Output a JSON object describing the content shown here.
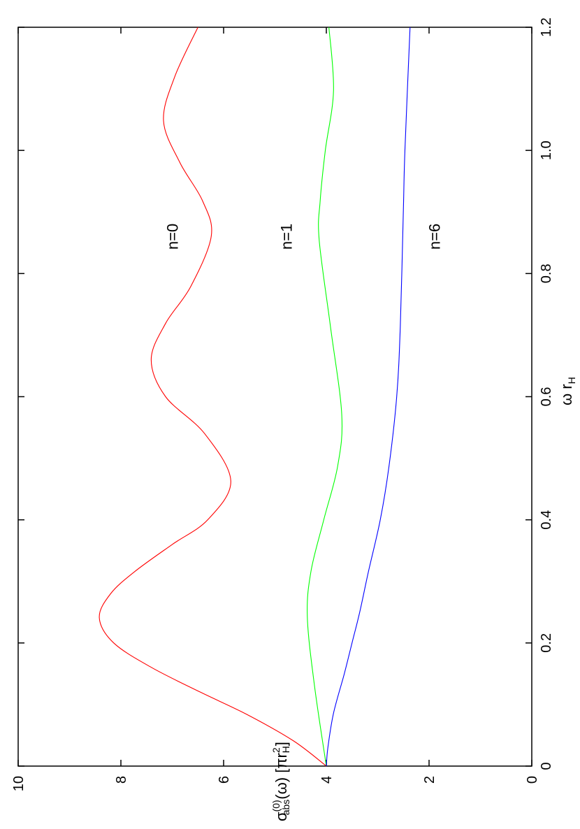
{
  "chart_data": {
    "type": "line",
    "orientation": "rotated 90° counter-clockwise",
    "title": "",
    "xlabel": "ω r",
    "xlabel_sub": "H",
    "ylabel_main": "σ",
    "ylabel_sup": "(0)",
    "ylabel_sub": "abs",
    "ylabel_rest": "(ω) [πr",
    "ylabel_sup2": "2",
    "ylabel_sub2": "H",
    "ylabel_end": "]",
    "xlim": [
      0,
      1.2
    ],
    "ylim": [
      0,
      10
    ],
    "xticks": [
      "0",
      "0.2",
      "0.4",
      "0.6",
      "0.8",
      "1.0",
      "1.2"
    ],
    "yticks": [
      "0",
      "2",
      "4",
      "6",
      "8",
      "10"
    ],
    "grid": false,
    "series": [
      {
        "name": "n=0",
        "color": "#ff0000",
        "x": [
          0,
          0.041,
          0.084,
          0.12,
          0.16,
          0.2,
          0.241,
          0.28,
          0.316,
          0.36,
          0.4,
          0.463,
          0.54,
          0.6,
          0.66,
          0.719,
          0.779,
          0.861,
          0.918,
          0.98,
          1.048,
          1.12,
          1.2
        ],
        "y": [
          4.0,
          4.64,
          5.55,
          6.45,
          7.4,
          8.14,
          8.42,
          8.2,
          7.73,
          7.0,
          6.31,
          5.86,
          6.37,
          7.13,
          7.41,
          7.13,
          6.64,
          6.24,
          6.41,
          6.85,
          7.17,
          6.95,
          6.5
        ]
      },
      {
        "name": "n=1",
        "color": "#00ff00",
        "x": [
          0,
          0.13,
          0.242,
          0.316,
          0.4,
          0.487,
          0.571,
          0.714,
          0.855,
          0.918,
          1.0,
          1.097,
          1.2
        ],
        "y": [
          4.0,
          4.23,
          4.37,
          4.3,
          4.05,
          3.78,
          3.7,
          3.92,
          4.14,
          4.12,
          4.02,
          3.86,
          3.95
        ]
      },
      {
        "name": "n=6",
        "color": "#0000ff",
        "x": [
          0,
          0.03,
          0.086,
          0.15,
          0.2,
          0.25,
          0.316,
          0.4,
          0.487,
          0.6,
          0.714,
          0.904,
          1.0,
          1.2
        ],
        "y": [
          4.0,
          3.97,
          3.86,
          3.65,
          3.5,
          3.35,
          3.18,
          2.95,
          2.78,
          2.63,
          2.56,
          2.5,
          2.47,
          2.37
        ]
      }
    ],
    "annotations": [
      {
        "text": "n=0",
        "x": 0.86,
        "y": 7.0
      },
      {
        "text": "n=1",
        "x": 0.86,
        "y": 4.78
      },
      {
        "text": "n=6",
        "x": 0.86,
        "y": 1.9
      }
    ]
  }
}
